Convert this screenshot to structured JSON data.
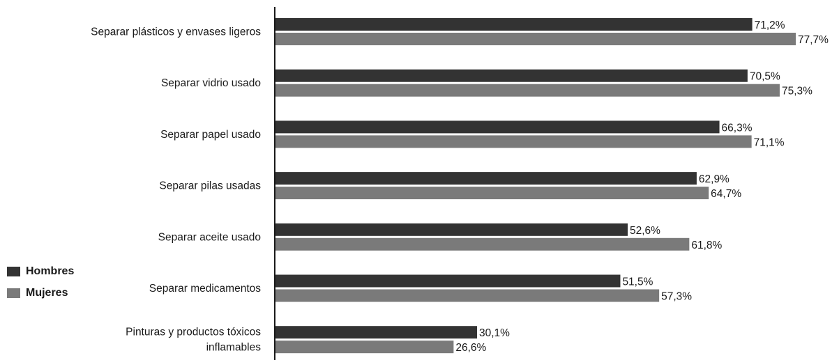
{
  "chart_data": {
    "type": "bar",
    "orientation": "horizontal",
    "categories": [
      "Separar plásticos y envases ligeros",
      "Separar vidrio usado",
      "Separar papel usado",
      "Separar pilas usadas",
      "Separar aceite usado",
      "Separar medicamentos",
      "Pinturas y productos tóxicos inflamables"
    ],
    "category_lines": [
      [
        "Separar plásticos y envases ligeros"
      ],
      [
        "Separar vidrio usado"
      ],
      [
        "Separar papel usado"
      ],
      [
        "Separar pilas usadas"
      ],
      [
        "Separar aceite usado"
      ],
      [
        "Separar medicamentos"
      ],
      [
        "Pinturas y productos tóxicos",
        "inflamables"
      ]
    ],
    "series": [
      {
        "name": "Hombres",
        "color": "#333333",
        "values": [
          71.2,
          70.5,
          66.3,
          62.9,
          52.6,
          51.5,
          30.1
        ],
        "labels": [
          "71,2%",
          "70,5%",
          "66,3%",
          "62,9%",
          "52,6%",
          "51,5%",
          "30,1%"
        ]
      },
      {
        "name": "Mujeres",
        "color": "#7a7a7a",
        "values": [
          77.7,
          75.3,
          71.1,
          64.7,
          61.8,
          57.3,
          26.6
        ],
        "labels": [
          "77,7%",
          "75,3%",
          "71,1%",
          "64,7%",
          "61,8%",
          "57,3%",
          "26,6%"
        ]
      }
    ],
    "xlim": [
      0,
      77.7
    ],
    "grid": false,
    "legend_position": "left-bottom",
    "title": "",
    "xlabel": "",
    "ylabel": ""
  },
  "legend": {
    "items": [
      {
        "label": "Hombres",
        "color": "#333333"
      },
      {
        "label": "Mujeres",
        "color": "#7a7a7a"
      }
    ]
  }
}
